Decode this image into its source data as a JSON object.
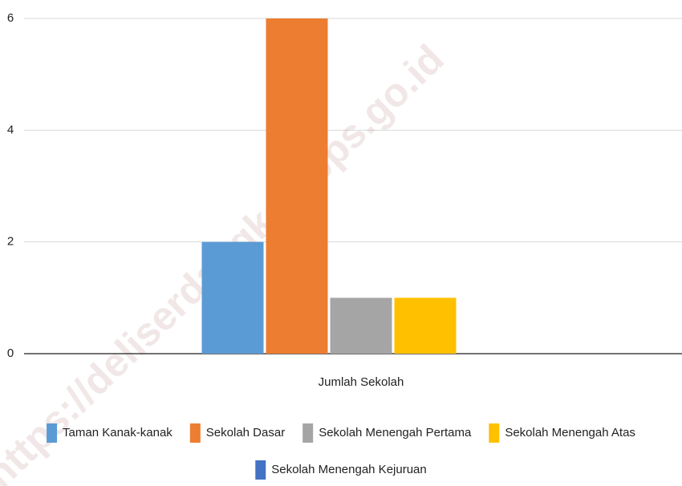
{
  "chart_data": {
    "type": "bar",
    "categories": [
      "Jumlah Sekolah"
    ],
    "series": [
      {
        "name": "Taman Kanak-kanak",
        "color": "#5b9bd5",
        "values": [
          2
        ]
      },
      {
        "name": "Sekolah Dasar",
        "color": "#ed7d31",
        "values": [
          6
        ]
      },
      {
        "name": "Sekolah Menengah Pertama",
        "color": "#a5a5a5",
        "values": [
          1
        ]
      },
      {
        "name": "Sekolah Menengah Atas",
        "color": "#ffc000",
        "values": [
          1
        ]
      },
      {
        "name": "Sekolah Menengah Kejuruan",
        "color": "#4472c4",
        "values": [
          0
        ]
      }
    ],
    "ylim": [
      0,
      6
    ],
    "yticks": [
      0,
      2,
      4,
      6
    ],
    "grid": true,
    "legend": "bottom",
    "watermark": "https://deliserdangkab.bps.go.id"
  }
}
